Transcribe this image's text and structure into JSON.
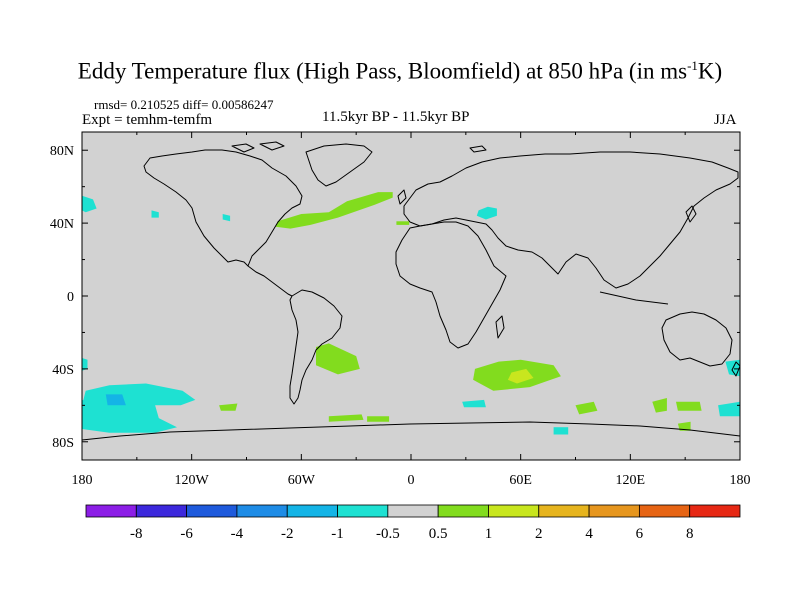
{
  "chart_data": {
    "type": "heatmap",
    "title_main": "Eddy Temperature flux (High Pass, Bloomfield) at 850 hPa (in ms",
    "title_unit_sup": "-1",
    "title_end": "K)",
    "stats": "rmsd= 0.210525 diff= 0.00586247",
    "experiment": "Expt = temhm-temfm",
    "period": "11.5kyr BP - 11.5kyr BP",
    "season": "JJA",
    "x_ticks": [
      {
        "lon": -180,
        "label": "180"
      },
      {
        "lon": -120,
        "label": "120W"
      },
      {
        "lon": -60,
        "label": "60W"
      },
      {
        "lon": 0,
        "label": "0"
      },
      {
        "lon": 60,
        "label": "60E"
      },
      {
        "lon": 120,
        "label": "120E"
      },
      {
        "lon": 180,
        "label": "180"
      }
    ],
    "y_ticks": [
      {
        "lat": 80,
        "label": "80N"
      },
      {
        "lat": 40,
        "label": "40N"
      },
      {
        "lat": 0,
        "label": "0"
      },
      {
        "lat": -40,
        "label": "40S"
      },
      {
        "lat": -80,
        "label": "80S"
      }
    ],
    "xlim": [
      -180,
      180
    ],
    "ylim": [
      -90,
      90
    ],
    "colorbar": {
      "colors": [
        "#8c1ee6",
        "#3c28dc",
        "#1e5adc",
        "#1e8ce6",
        "#14b4e6",
        "#1ee1d2",
        "#d2d2d2",
        "#82dc1e",
        "#c8e61e",
        "#e6b41e",
        "#e6961e",
        "#e66414",
        "#e62814"
      ],
      "labels": [
        "-8",
        "-6",
        "-4",
        "-2",
        "-1",
        "-0.5",
        "0.5",
        "1",
        "2",
        "4",
        "6",
        "8"
      ]
    },
    "background_value_range": [
      -0.5,
      0.5
    ],
    "anomaly_regions": [
      {
        "name": "north-pacific-west-patch",
        "value_range": [
          -1,
          -0.5
        ],
        "points": [
          [
            -180,
            55
          ],
          [
            -174,
            53
          ],
          [
            -172,
            48
          ],
          [
            -178,
            46
          ],
          [
            -180,
            47
          ]
        ]
      },
      {
        "name": "north-pacific-east-patch",
        "value_range": [
          -1,
          -0.5
        ],
        "points": [
          [
            -142,
            47
          ],
          [
            -138,
            46
          ],
          [
            -138,
            43
          ],
          [
            -142,
            43
          ]
        ]
      },
      {
        "name": "north-america-small-patch",
        "value_range": [
          -1,
          -0.5
        ],
        "points": [
          [
            -103,
            45
          ],
          [
            -99,
            44
          ],
          [
            -99,
            41
          ],
          [
            -103,
            42
          ]
        ]
      },
      {
        "name": "black-sea-patch",
        "value_range": [
          -1,
          -0.5
        ],
        "points": [
          [
            37,
            47
          ],
          [
            42,
            49
          ],
          [
            47,
            48
          ],
          [
            47,
            44
          ],
          [
            41,
            42
          ],
          [
            36,
            44
          ]
        ]
      },
      {
        "name": "north-atlantic-band",
        "value_range": [
          0.5,
          1
        ],
        "points": [
          [
            -73,
            41
          ],
          [
            -60,
            45
          ],
          [
            -45,
            46
          ],
          [
            -35,
            52
          ],
          [
            -18,
            57
          ],
          [
            -10,
            57
          ],
          [
            -10,
            54
          ],
          [
            -20,
            50
          ],
          [
            -40,
            43
          ],
          [
            -55,
            39
          ],
          [
            -66,
            37
          ],
          [
            -74,
            38
          ]
        ]
      },
      {
        "name": "iberia-strip",
        "value_range": [
          0.5,
          1
        ],
        "points": [
          [
            -8,
            41
          ],
          [
            -1,
            41
          ],
          [
            -1,
            39
          ],
          [
            -8,
            39
          ]
        ]
      },
      {
        "name": "south-atlantic-patch",
        "value_range": [
          0.5,
          1
        ],
        "points": [
          [
            -52,
            -28
          ],
          [
            -45,
            -26
          ],
          [
            -30,
            -33
          ],
          [
            -28,
            -40
          ],
          [
            -40,
            -43
          ],
          [
            -52,
            -38
          ]
        ]
      },
      {
        "name": "south-indian-patch",
        "value_range": [
          0.5,
          1
        ],
        "points": [
          [
            35,
            -40
          ],
          [
            48,
            -36
          ],
          [
            60,
            -35
          ],
          [
            78,
            -38
          ],
          [
            82,
            -44
          ],
          [
            65,
            -50
          ],
          [
            45,
            -52
          ],
          [
            34,
            -46
          ]
        ]
      },
      {
        "name": "south-indian-core",
        "value_range": [
          1,
          2
        ],
        "points": [
          [
            55,
            -42
          ],
          [
            63,
            -40
          ],
          [
            67,
            -45
          ],
          [
            58,
            -48
          ],
          [
            53,
            -46
          ]
        ]
      },
      {
        "name": "southern-ocean-patch-1",
        "value_range": [
          0.5,
          1
        ],
        "points": [
          [
            -105,
            -60
          ],
          [
            -95,
            -59
          ],
          [
            -96,
            -63
          ],
          [
            -104,
            -63
          ]
        ]
      },
      {
        "name": "southern-ocean-patch-2",
        "value_range": [
          0.5,
          1
        ],
        "points": [
          [
            -45,
            -66
          ],
          [
            -27,
            -65
          ],
          [
            -26,
            -68
          ],
          [
            -45,
            -69
          ]
        ]
      },
      {
        "name": "southern-ocean-patch-3",
        "value_range": [
          0.5,
          1
        ],
        "points": [
          [
            -24,
            -66
          ],
          [
            -12,
            -66
          ],
          [
            -12,
            -69
          ],
          [
            -24,
            -69
          ]
        ]
      },
      {
        "name": "southern-ocean-patch-4",
        "value_range": [
          0.5,
          1
        ],
        "points": [
          [
            90,
            -60
          ],
          [
            100,
            -58
          ],
          [
            102,
            -63
          ],
          [
            92,
            -65
          ]
        ]
      },
      {
        "name": "southern-ocean-patch-5",
        "value_range": [
          0.5,
          1
        ],
        "points": [
          [
            132,
            -58
          ],
          [
            140,
            -56
          ],
          [
            140,
            -63
          ],
          [
            134,
            -64
          ]
        ]
      },
      {
        "name": "southern-ocean-patch-6",
        "value_range": [
          0.5,
          1
        ],
        "points": [
          [
            145,
            -58
          ],
          [
            158,
            -58
          ],
          [
            159,
            -63
          ],
          [
            146,
            -63
          ]
        ]
      },
      {
        "name": "southern-ocean-patch-7",
        "value_range": [
          0.5,
          1
        ],
        "points": [
          [
            146,
            -70
          ],
          [
            153,
            -69
          ],
          [
            153,
            -74
          ],
          [
            147,
            -74
          ]
        ]
      },
      {
        "name": "south-pacific-large-patch",
        "value_range": [
          -1,
          -0.5
        ],
        "points": [
          [
            -178,
            -52
          ],
          [
            -165,
            -49
          ],
          [
            -145,
            -48
          ],
          [
            -125,
            -52
          ],
          [
            -118,
            -57
          ],
          [
            -126,
            -60
          ],
          [
            -140,
            -60
          ],
          [
            -138,
            -67
          ],
          [
            -128,
            -72
          ],
          [
            -140,
            -75
          ],
          [
            -165,
            -75
          ],
          [
            -180,
            -73
          ],
          [
            -180,
            -60
          ]
        ]
      },
      {
        "name": "south-pacific-core",
        "value_range": [
          -2,
          -1
        ],
        "points": [
          [
            -167,
            -54
          ],
          [
            -158,
            -54
          ],
          [
            -156,
            -60
          ],
          [
            -166,
            -60
          ]
        ]
      },
      {
        "name": "south-atlantic-small-patch",
        "value_range": [
          -1,
          -0.5
        ],
        "points": [
          [
            28,
            -58
          ],
          [
            40,
            -57
          ],
          [
            41,
            -61
          ],
          [
            29,
            -61
          ]
        ]
      },
      {
        "name": "southern-ocean-patch-8",
        "value_range": [
          -1,
          -0.5
        ],
        "points": [
          [
            78,
            -72
          ],
          [
            86,
            -72
          ],
          [
            86,
            -76
          ],
          [
            78,
            -76
          ]
        ]
      },
      {
        "name": "southeast-pacific-patch",
        "value_range": [
          -1,
          -0.5
        ],
        "points": [
          [
            168,
            -60
          ],
          [
            180,
            -58
          ],
          [
            180,
            -66
          ],
          [
            169,
            -66
          ]
        ]
      },
      {
        "name": "southwest-pacific-patch",
        "value_range": [
          -1,
          -0.5
        ],
        "points": [
          [
            -180,
            -57
          ],
          [
            -176,
            -58
          ],
          [
            -176,
            -65
          ],
          [
            -180,
            -66
          ]
        ]
      },
      {
        "name": "new-zealand-patch",
        "value_range": [
          -1,
          -0.5
        ],
        "points": [
          [
            -180,
            -34
          ],
          [
            -177,
            -35
          ],
          [
            -177,
            -40
          ],
          [
            -180,
            -41
          ]
        ]
      },
      {
        "name": "australia-east-patch",
        "value_range": [
          -1,
          -0.5
        ],
        "points": [
          [
            172,
            -36
          ],
          [
            180,
            -35
          ],
          [
            180,
            -44
          ],
          [
            174,
            -43
          ]
        ]
      }
    ]
  }
}
